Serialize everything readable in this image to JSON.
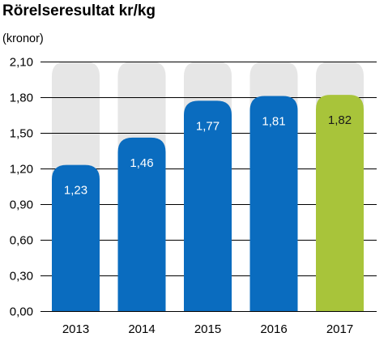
{
  "chart_data": {
    "type": "bar",
    "title": "Rörelseresultat kr/kg",
    "unit_label": "(kronor)",
    "categories": [
      "2013",
      "2014",
      "2015",
      "2016",
      "2017"
    ],
    "values": [
      1.23,
      1.46,
      1.77,
      1.81,
      1.82
    ],
    "value_labels": [
      "1,23",
      "1,46",
      "1,77",
      "1,81",
      "1,82"
    ],
    "ylim": [
      0,
      2.1
    ],
    "y_ticks": [
      0,
      0.3,
      0.6,
      0.9,
      1.2,
      1.5,
      1.8,
      2.1
    ],
    "y_tick_labels": [
      "0,00",
      "0,30",
      "0,60",
      "0,90",
      "1,20",
      "1,50",
      "1,80",
      "2,10"
    ],
    "grid": true,
    "background_bars": true,
    "colors": {
      "bar_default": "#0a6cbf",
      "bar_highlight": "#a8c43a",
      "bar_background": "#e6e6e6",
      "gridline": "#000000",
      "label_on_default": "#ffffff",
      "label_on_highlight": "#1a1a1a"
    },
    "highlight_index": 4
  }
}
